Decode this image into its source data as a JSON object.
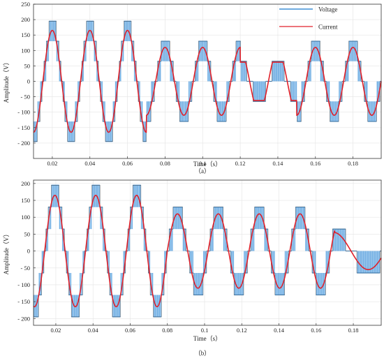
{
  "colors": {
    "voltage": "#3f8fd6",
    "voltage_fill": "#6fb0e8",
    "current": "#e0202a",
    "reference": "#555555",
    "grid": "#e4e4e4",
    "axis": "#333333",
    "background": "#ffffff"
  },
  "chart_data": [
    {
      "type": "line",
      "caption": "（a）",
      "xlabel": "Time（s）",
      "ylabel": "Amplitude（V）",
      "xlim": [
        0.01,
        0.195
      ],
      "ylim": [
        -250,
        250
      ],
      "xticks": [
        0.02,
        0.04,
        0.06,
        0.08,
        0.1,
        0.12,
        0.14,
        0.16,
        0.18
      ],
      "xtick_labels": [
        "0.02",
        "0.04",
        "0.06",
        "0.08",
        "0.1",
        "0.12",
        "0.14",
        "0.16",
        "0.18"
      ],
      "yticks": [
        250,
        200,
        150,
        100,
        50,
        0,
        -50,
        -100,
        -150,
        -200
      ],
      "ytick_labels": [
        "250",
        "200",
        "150",
        "100",
        "50",
        "0",
        "- 50",
        "- 100",
        "- 150",
        "- 200"
      ],
      "grid": true,
      "legend": {
        "position": "top-right",
        "entries": [
          "Voltage",
          "Current"
        ]
      },
      "series": [
        {
          "name": "Voltage",
          "kind": "staircase-pwm"
        },
        {
          "name": "Current",
          "kind": "sinusoid"
        }
      ],
      "frequency_hz": 50,
      "phase_start_s": 0.02,
      "segments": [
        {
          "t_start": 0.01,
          "t_end": 0.07,
          "voltage_peak": 195,
          "voltage_step": 65,
          "current_peak": 165
        },
        {
          "t_start": 0.07,
          "t_end": 0.12,
          "voltage_peak": 130,
          "voltage_step": 65,
          "current_peak": 110
        },
        {
          "t_start": 0.12,
          "t_end": 0.15,
          "voltage_peak": 65,
          "voltage_step": 65,
          "current_peak": 62,
          "flat_top": true
        },
        {
          "t_start": 0.15,
          "t_end": 0.195,
          "voltage_peak": 130,
          "voltage_step": 65,
          "current_peak": 110
        }
      ]
    },
    {
      "type": "line",
      "caption": "（b）",
      "xlabel": "Time（s）",
      "ylabel": "Amplitude（V）",
      "xlim": [
        0.008,
        0.195
      ],
      "ylim": [
        -220,
        210
      ],
      "xticks": [
        0.02,
        0.04,
        0.06,
        0.08,
        0.1,
        0.12,
        0.14,
        0.16,
        0.18
      ],
      "xtick_labels": [
        "0.02",
        "0.04",
        "0.06",
        "0.08",
        "0.1",
        "0.12",
        "0.14",
        "0.16",
        "0.18"
      ],
      "yticks": [
        200,
        150,
        100,
        50,
        0,
        -50,
        -100,
        -150,
        -200
      ],
      "ytick_labels": [
        "200",
        "150",
        "100",
        "50",
        "0",
        "- 50",
        "- 100",
        "- 150",
        "- 200"
      ],
      "grid": true,
      "series": [
        {
          "name": "Voltage",
          "kind": "staircase-pwm"
        },
        {
          "name": "Current",
          "kind": "sinusoid"
        }
      ],
      "segments": [
        {
          "t_start": 0.008,
          "t_end": 0.08,
          "voltage_peak": 195,
          "voltage_step": 65,
          "current_peak": 165,
          "frequency_hz": 45.5,
          "phase_start_s": 0.0195
        },
        {
          "t_start": 0.08,
          "t_end": 0.17,
          "voltage_peak": 130,
          "voltage_step": 65,
          "current_peak": 110,
          "frequency_hz": 45.5,
          "phase_start_s": 0.0195
        },
        {
          "t_start": 0.17,
          "t_end": 0.195,
          "voltage_peak": 65,
          "voltage_step": 65,
          "current_peak": 55,
          "frequency_hz": 27,
          "phase_start_s": 0.1695
        }
      ]
    }
  ]
}
